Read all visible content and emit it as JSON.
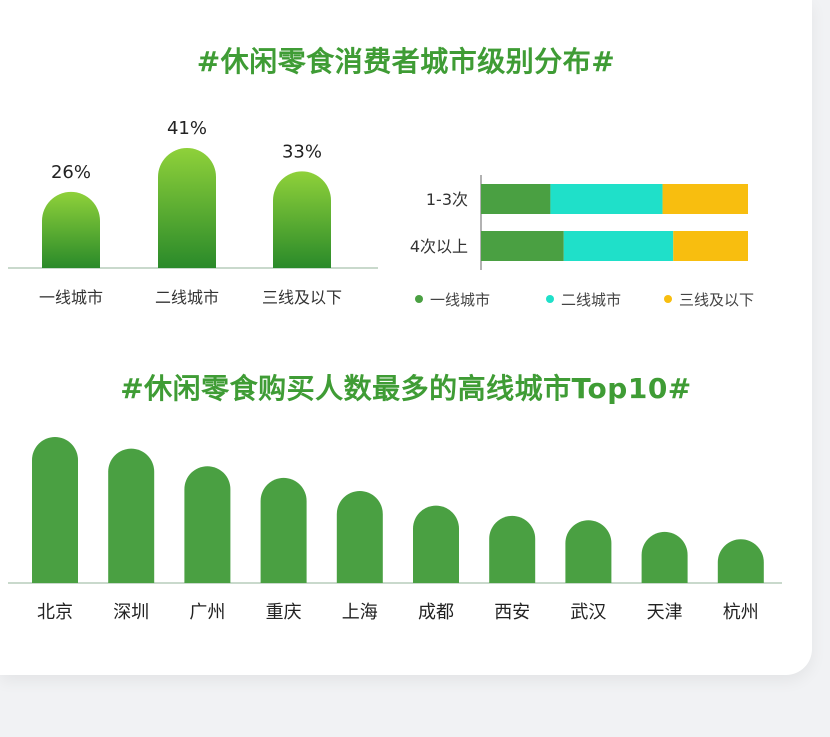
{
  "titles": {
    "city_distribution": "#休闲零食消费者城市级别分布#",
    "top10": "#休闲零食购买人数最多的高线城市Top10#"
  },
  "colors": {
    "title": "#3f9c35",
    "tier1": "#4aa042",
    "tier2": "#1fe0c9",
    "tier3": "#f8be0f",
    "top10_bar": "#4aa042",
    "gradient_top": "#8fd13a",
    "gradient_bottom": "#2a8a2a"
  },
  "chart_data": [
    {
      "type": "bar",
      "categories": [
        "一线城市",
        "二线城市",
        "三线及以下"
      ],
      "values": [
        26,
        41,
        33
      ],
      "data_labels": [
        "26%",
        "41%",
        "33%"
      ],
      "ylim": [
        0,
        41
      ]
    },
    {
      "type": "bar",
      "orientation": "horizontal",
      "stacked": true,
      "categories": [
        "1-3次",
        "4次以上"
      ],
      "series": [
        {
          "name": "一线城市",
          "values": [
            26,
            31
          ]
        },
        {
          "name": "二线城市",
          "values": [
            42,
            41
          ]
        },
        {
          "name": "三线及以下",
          "values": [
            32,
            28
          ]
        }
      ],
      "xlim": [
        0,
        100
      ],
      "legend": "bottom"
    },
    {
      "type": "bar",
      "categories": [
        "北京",
        "深圳",
        "广州",
        "重庆",
        "上海",
        "成都",
        "西安",
        "武汉",
        "天津",
        "杭州"
      ],
      "values": [
        100,
        92,
        80,
        72,
        63,
        53,
        46,
        43,
        35,
        30
      ],
      "ylim": [
        0,
        100
      ]
    }
  ]
}
